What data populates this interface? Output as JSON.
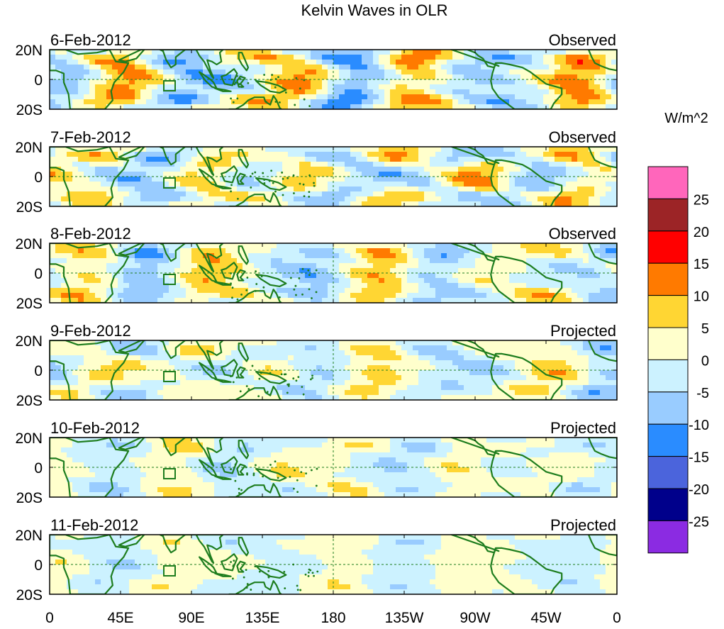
{
  "chart_data": {
    "type": "heatmap",
    "title": "Kelvin Waves in OLR",
    "xlabel": "",
    "ylabel": "",
    "x_ticks": [
      "0",
      "45E",
      "90E",
      "135E",
      "180",
      "135W",
      "90W",
      "45W",
      "0"
    ],
    "y_ticks": [
      "20N",
      "0",
      "20S"
    ],
    "xlim": [
      0,
      360
    ],
    "ylim": [
      -20,
      20
    ],
    "colorbar": {
      "units": "W/m^2",
      "tick_labels": [
        "25",
        "20",
        "15",
        "10",
        "5",
        "0",
        "-5",
        "-10",
        "-15",
        "-20",
        "-25"
      ],
      "colors": [
        "#ff66bb",
        "#9c2426",
        "#ff0000",
        "#ff7a00",
        "#ffd633",
        "#ffffcc",
        "#ccf2ff",
        "#99ccff",
        "#2a8cff",
        "#4b64dc",
        "#00008b",
        "#8b2be2"
      ]
    },
    "panels": [
      {
        "date": "6-Feb-2012",
        "status": "Observed"
      },
      {
        "date": "7-Feb-2012",
        "status": "Observed"
      },
      {
        "date": "8-Feb-2012",
        "status": "Observed"
      },
      {
        "date": "9-Feb-2012",
        "status": "Projected"
      },
      {
        "date": "10-Feb-2012",
        "status": "Projected"
      },
      {
        "date": "11-Feb-2012",
        "status": "Projected"
      }
    ]
  }
}
